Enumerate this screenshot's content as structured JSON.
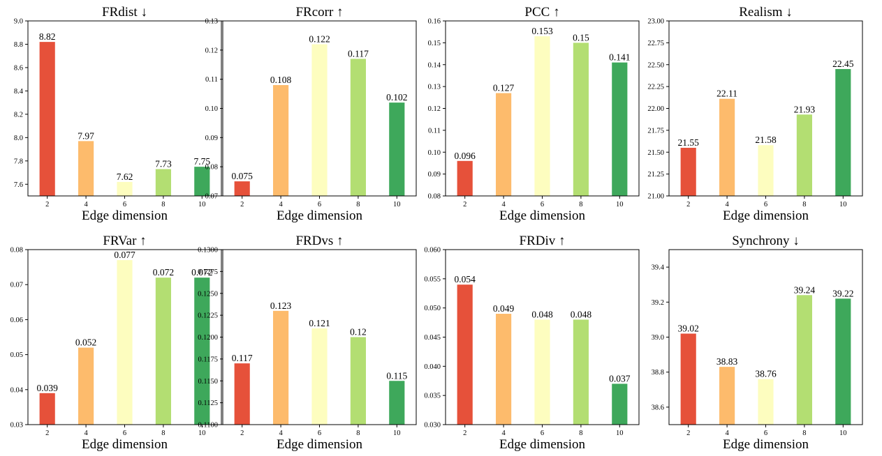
{
  "palette": [
    "#e6513a",
    "#fdbb6c",
    "#fdfdbf",
    "#b3de72",
    "#3ea85b"
  ],
  "chart_data": [
    {
      "type": "bar",
      "title": "FRdist ↓",
      "xlabel": "Edge dimension",
      "categories": [
        "2",
        "4",
        "6",
        "8",
        "10"
      ],
      "values": [
        8.82,
        7.97,
        7.62,
        7.73,
        7.75
      ],
      "value_labels": [
        "8.82",
        "7.97",
        "7.62",
        "7.73",
        "7.75"
      ],
      "ylim": [
        7.5,
        9.0
      ],
      "yticks": [
        "7.6",
        "7.8",
        "8.0",
        "8.2",
        "8.4",
        "8.6",
        "8.8",
        "9.0"
      ],
      "grid": false
    },
    {
      "type": "bar",
      "title": "FRcorr ↑",
      "xlabel": "Edge dimension",
      "categories": [
        "2",
        "4",
        "6",
        "8",
        "10"
      ],
      "values": [
        0.075,
        0.108,
        0.122,
        0.117,
        0.102
      ],
      "value_labels": [
        "0.075",
        "0.108",
        "0.122",
        "0.117",
        "0.102"
      ],
      "ylim": [
        0.07,
        0.13
      ],
      "yticks": [
        "0.07",
        "0.08",
        "0.09",
        "0.10",
        "0.11",
        "0.12",
        "0.13"
      ],
      "grid": false
    },
    {
      "type": "bar",
      "title": "PCC ↑",
      "xlabel": "Edge dimension",
      "categories": [
        "2",
        "4",
        "6",
        "8",
        "10"
      ],
      "values": [
        0.096,
        0.127,
        0.153,
        0.15,
        0.141
      ],
      "value_labels": [
        "0.096",
        "0.127",
        "0.153",
        "0.15",
        "0.141"
      ],
      "ylim": [
        0.08,
        0.16
      ],
      "yticks": [
        "0.08",
        "0.09",
        "0.10",
        "0.11",
        "0.12",
        "0.13",
        "0.14",
        "0.15",
        "0.16"
      ],
      "grid": false
    },
    {
      "type": "bar",
      "title": "Realism ↓",
      "xlabel": "Edge dimension",
      "categories": [
        "2",
        "4",
        "6",
        "8",
        "10"
      ],
      "values": [
        21.55,
        22.11,
        21.58,
        21.93,
        22.45
      ],
      "value_labels": [
        "21.55",
        "22.11",
        "21.58",
        "21.93",
        "22.45"
      ],
      "ylim": [
        21.0,
        23.0
      ],
      "yticks": [
        "21.00",
        "21.25",
        "21.50",
        "21.75",
        "22.00",
        "22.25",
        "22.50",
        "22.75",
        "23.00"
      ],
      "grid": false
    },
    {
      "type": "bar",
      "title": "FRVar ↑",
      "xlabel": "Edge dimension",
      "categories": [
        "2",
        "4",
        "6",
        "8",
        "10"
      ],
      "values": [
        0.039,
        0.052,
        0.077,
        0.072,
        0.072
      ],
      "value_labels": [
        "0.039",
        "0.052",
        "0.077",
        "0.072",
        "0.072"
      ],
      "ylim": [
        0.03,
        0.08
      ],
      "yticks": [
        "0.03",
        "0.04",
        "0.05",
        "0.06",
        "0.07",
        "0.08"
      ],
      "grid": false
    },
    {
      "type": "bar",
      "title": "FRDvs ↑",
      "xlabel": "Edge dimension",
      "categories": [
        "2",
        "4",
        "6",
        "8",
        "10"
      ],
      "values": [
        0.117,
        0.123,
        0.121,
        0.12,
        0.115
      ],
      "value_labels": [
        "0.117",
        "0.123",
        "0.121",
        "0.12",
        "0.115"
      ],
      "ylim": [
        0.11,
        0.13
      ],
      "yticks": [
        "0.1100",
        "0.1125",
        "0.1150",
        "0.1175",
        "0.1200",
        "0.1225",
        "0.1250",
        "0.1275",
        "0.1300"
      ],
      "grid": false
    },
    {
      "type": "bar",
      "title": "FRDiv ↑",
      "xlabel": "Edge dimension",
      "categories": [
        "2",
        "4",
        "6",
        "8",
        "10"
      ],
      "values": [
        0.054,
        0.049,
        0.048,
        0.048,
        0.037
      ],
      "value_labels": [
        "0.054",
        "0.049",
        "0.048",
        "0.048",
        "0.037"
      ],
      "ylim": [
        0.03,
        0.06
      ],
      "yticks": [
        "0.030",
        "0.035",
        "0.040",
        "0.045",
        "0.050",
        "0.055",
        "0.060"
      ],
      "grid": false
    },
    {
      "type": "bar",
      "title": "Synchrony ↓",
      "xlabel": "Edge dimension",
      "categories": [
        "2",
        "4",
        "6",
        "8",
        "10"
      ],
      "values": [
        39.02,
        38.83,
        38.76,
        39.24,
        39.22
      ],
      "value_labels": [
        "39.02",
        "38.83",
        "38.76",
        "39.24",
        "39.22"
      ],
      "ylim": [
        38.5,
        39.5
      ],
      "yticks": [
        "38.6",
        "38.8",
        "39.0",
        "39.2",
        "39.4"
      ],
      "grid": false
    }
  ]
}
